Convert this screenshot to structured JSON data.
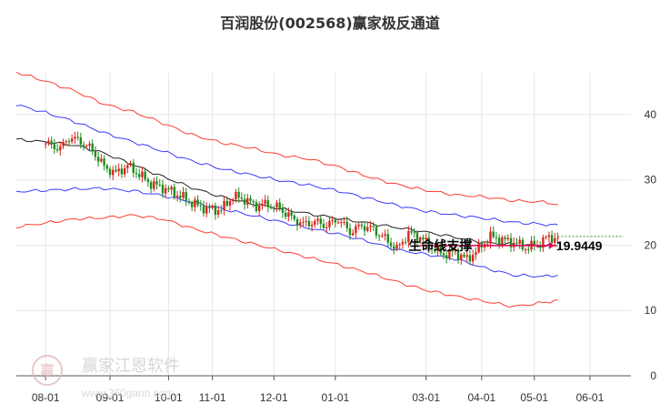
{
  "chart_data": {
    "type": "candlestick-channel",
    "title": "百润股份(002568)赢家极反通道",
    "y_ticks": [
      {
        "value": 0,
        "label": "0"
      },
      {
        "value": 10,
        "label": "10"
      },
      {
        "value": 20,
        "label": "20"
      },
      {
        "value": 30,
        "label": "30"
      },
      {
        "value": 40,
        "label": "40"
      }
    ],
    "ylim": [
      0,
      46.4
    ],
    "x_ticks": [
      {
        "x": 0,
        "label": "08-01"
      },
      {
        "x": 22,
        "label": "09-01"
      },
      {
        "x": 42,
        "label": "10-01"
      },
      {
        "x": 57,
        "label": "11-01"
      },
      {
        "x": 78,
        "label": "12-01"
      },
      {
        "x": 99,
        "label": "01-01"
      },
      {
        "x": 130,
        "label": "03-01"
      },
      {
        "x": 149,
        "label": "04-01"
      },
      {
        "x": 167,
        "label": "05-01"
      },
      {
        "x": 186,
        "label": "06-01"
      }
    ],
    "x_span": [
      -10,
      200
    ],
    "last_index": 175,
    "grid": true,
    "price_series": [
      {
        "x": 0,
        "y": 35.6
      },
      {
        "x": 5,
        "y": 34.8
      },
      {
        "x": 8,
        "y": 36.5
      },
      {
        "x": 12,
        "y": 35.9
      },
      {
        "x": 16,
        "y": 34.5
      },
      {
        "x": 20,
        "y": 32.0
      },
      {
        "x": 24,
        "y": 31.0
      },
      {
        "x": 28,
        "y": 32.2
      },
      {
        "x": 32,
        "y": 30.8
      },
      {
        "x": 36,
        "y": 29.4
      },
      {
        "x": 40,
        "y": 28.8
      },
      {
        "x": 44,
        "y": 28.0
      },
      {
        "x": 48,
        "y": 27.0
      },
      {
        "x": 52,
        "y": 26.0
      },
      {
        "x": 56,
        "y": 25.5
      },
      {
        "x": 60,
        "y": 25.4
      },
      {
        "x": 64,
        "y": 27.5
      },
      {
        "x": 68,
        "y": 27.0
      },
      {
        "x": 72,
        "y": 26.0
      },
      {
        "x": 76,
        "y": 26.3
      },
      {
        "x": 80,
        "y": 25.6
      },
      {
        "x": 84,
        "y": 24.2
      },
      {
        "x": 88,
        "y": 23.2
      },
      {
        "x": 92,
        "y": 23.6
      },
      {
        "x": 96,
        "y": 23.0
      },
      {
        "x": 100,
        "y": 24.0
      },
      {
        "x": 104,
        "y": 22.0
      },
      {
        "x": 108,
        "y": 23.0
      },
      {
        "x": 112,
        "y": 22.4
      },
      {
        "x": 116,
        "y": 21.0
      },
      {
        "x": 120,
        "y": 19.4
      },
      {
        "x": 124,
        "y": 21.8
      },
      {
        "x": 128,
        "y": 21.2
      },
      {
        "x": 132,
        "y": 19.6
      },
      {
        "x": 136,
        "y": 18.6
      },
      {
        "x": 140,
        "y": 18.9
      },
      {
        "x": 144,
        "y": 17.8
      },
      {
        "x": 148,
        "y": 19.5
      },
      {
        "x": 152,
        "y": 21.3
      },
      {
        "x": 156,
        "y": 20.8
      },
      {
        "x": 160,
        "y": 20.4
      },
      {
        "x": 164,
        "y": 19.6
      },
      {
        "x": 168,
        "y": 20.1
      },
      {
        "x": 172,
        "y": 21.3
      },
      {
        "x": 175,
        "y": 20.9
      }
    ],
    "lines": [
      {
        "role": "outer-upper",
        "color": "#ff3b30",
        "points": [
          {
            "x": -10,
            "y": 46.5
          },
          {
            "x": 0,
            "y": 45.1
          },
          {
            "x": 10,
            "y": 43.6
          },
          {
            "x": 20,
            "y": 41.6
          },
          {
            "x": 30,
            "y": 40.4
          },
          {
            "x": 40,
            "y": 38.7
          },
          {
            "x": 50,
            "y": 36.9
          },
          {
            "x": 60,
            "y": 35.7
          },
          {
            "x": 70,
            "y": 34.9
          },
          {
            "x": 80,
            "y": 33.8
          },
          {
            "x": 90,
            "y": 33.2
          },
          {
            "x": 100,
            "y": 32.0
          },
          {
            "x": 110,
            "y": 30.5
          },
          {
            "x": 120,
            "y": 29.3
          },
          {
            "x": 130,
            "y": 28.4
          },
          {
            "x": 140,
            "y": 27.7
          },
          {
            "x": 150,
            "y": 27.4
          },
          {
            "x": 160,
            "y": 26.8
          },
          {
            "x": 170,
            "y": 26.6
          },
          {
            "x": 175,
            "y": 26.3
          }
        ]
      },
      {
        "role": "inner-upper",
        "color": "#3a3aff",
        "points": [
          {
            "x": -10,
            "y": 41.5
          },
          {
            "x": 0,
            "y": 40.3
          },
          {
            "x": 10,
            "y": 38.9
          },
          {
            "x": 20,
            "y": 37.2
          },
          {
            "x": 30,
            "y": 35.8
          },
          {
            "x": 40,
            "y": 34.4
          },
          {
            "x": 50,
            "y": 32.9
          },
          {
            "x": 60,
            "y": 31.7
          },
          {
            "x": 70,
            "y": 30.8
          },
          {
            "x": 80,
            "y": 29.9
          },
          {
            "x": 90,
            "y": 29.2
          },
          {
            "x": 100,
            "y": 28.3
          },
          {
            "x": 110,
            "y": 27.2
          },
          {
            "x": 120,
            "y": 26.1
          },
          {
            "x": 130,
            "y": 25.2
          },
          {
            "x": 140,
            "y": 24.6
          },
          {
            "x": 150,
            "y": 24.1
          },
          {
            "x": 160,
            "y": 23.5
          },
          {
            "x": 170,
            "y": 23.2
          },
          {
            "x": 175,
            "y": 23.1
          }
        ]
      },
      {
        "role": "middle",
        "color": "#222222",
        "points": [
          {
            "x": -10,
            "y": 36.2
          },
          {
            "x": 0,
            "y": 35.8
          },
          {
            "x": 10,
            "y": 35.3
          },
          {
            "x": 20,
            "y": 34.1
          },
          {
            "x": 30,
            "y": 32.3
          },
          {
            "x": 40,
            "y": 30.5
          },
          {
            "x": 50,
            "y": 28.8
          },
          {
            "x": 60,
            "y": 27.4
          },
          {
            "x": 70,
            "y": 26.4
          },
          {
            "x": 80,
            "y": 25.6
          },
          {
            "x": 90,
            "y": 24.8
          },
          {
            "x": 100,
            "y": 24.1
          },
          {
            "x": 110,
            "y": 23.4
          },
          {
            "x": 120,
            "y": 22.7
          },
          {
            "x": 130,
            "y": 22.0
          },
          {
            "x": 140,
            "y": 21.2
          },
          {
            "x": 150,
            "y": 20.4
          },
          {
            "x": 160,
            "y": 20.1
          },
          {
            "x": 170,
            "y": 19.9
          },
          {
            "x": 175,
            "y": 19.9
          }
        ]
      },
      {
        "role": "inner-lower",
        "color": "#3a3aff",
        "points": [
          {
            "x": -10,
            "y": 28.2
          },
          {
            "x": 0,
            "y": 28.4
          },
          {
            "x": 10,
            "y": 28.6
          },
          {
            "x": 20,
            "y": 28.7
          },
          {
            "x": 30,
            "y": 28.3
          },
          {
            "x": 40,
            "y": 27.6
          },
          {
            "x": 50,
            "y": 26.6
          },
          {
            "x": 60,
            "y": 25.6
          },
          {
            "x": 70,
            "y": 24.6
          },
          {
            "x": 80,
            "y": 23.6
          },
          {
            "x": 90,
            "y": 22.6
          },
          {
            "x": 100,
            "y": 21.7
          },
          {
            "x": 110,
            "y": 20.6
          },
          {
            "x": 120,
            "y": 19.3
          },
          {
            "x": 130,
            "y": 18.6
          },
          {
            "x": 140,
            "y": 17.9
          },
          {
            "x": 150,
            "y": 16.5
          },
          {
            "x": 160,
            "y": 15.4
          },
          {
            "x": 170,
            "y": 15.2
          },
          {
            "x": 175,
            "y": 15.4
          }
        ]
      },
      {
        "role": "outer-lower",
        "color": "#ff3b30",
        "points": [
          {
            "x": -10,
            "y": 22.8
          },
          {
            "x": 0,
            "y": 23.4
          },
          {
            "x": 10,
            "y": 24.0
          },
          {
            "x": 20,
            "y": 24.2
          },
          {
            "x": 30,
            "y": 24.6
          },
          {
            "x": 40,
            "y": 24.0
          },
          {
            "x": 50,
            "y": 22.6
          },
          {
            "x": 60,
            "y": 21.4
          },
          {
            "x": 70,
            "y": 20.3
          },
          {
            "x": 80,
            "y": 19.2
          },
          {
            "x": 90,
            "y": 18.1
          },
          {
            "x": 100,
            "y": 17.0
          },
          {
            "x": 110,
            "y": 15.8
          },
          {
            "x": 120,
            "y": 14.4
          },
          {
            "x": 130,
            "y": 13.1
          },
          {
            "x": 140,
            "y": 12.2
          },
          {
            "x": 150,
            "y": 11.4
          },
          {
            "x": 160,
            "y": 10.6
          },
          {
            "x": 170,
            "y": 11.2
          },
          {
            "x": 175,
            "y": 11.6
          }
        ]
      }
    ],
    "support": {
      "label": "生命线支撑",
      "value": 19.9449,
      "value_label": "19.9449",
      "arrow_color": "#e8005a",
      "dash_color": "#2e8b2e"
    },
    "colors": {
      "up": "#d9261c",
      "down": "#1f8a1f",
      "grid": "#e6e6e6",
      "axis": "#555555"
    }
  },
  "watermark": {
    "text": "赢家江恩软件",
    "url": "www.360gann.com",
    "seal_glyph": "赢"
  }
}
